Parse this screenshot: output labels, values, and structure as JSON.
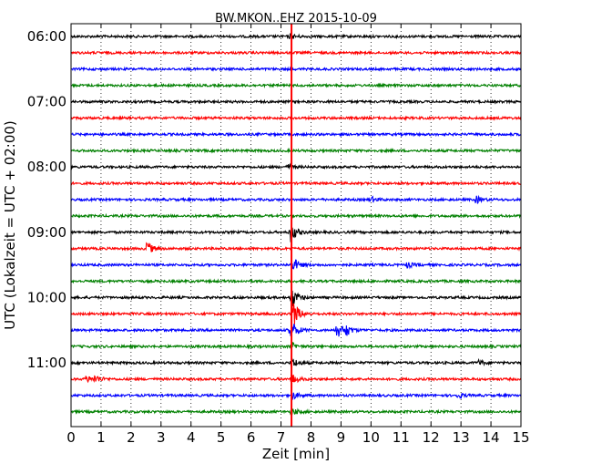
{
  "chart_data": {
    "type": "line",
    "title": "BW.MKON..EHZ 2015-10-09",
    "xlabel": "Zeit  [min]",
    "ylabel": "UTC (Lokalzeit = UTC + 02:00)",
    "xlim": [
      0,
      15
    ],
    "x_ticks": [
      "0",
      "1",
      "2",
      "3",
      "4",
      "5",
      "6",
      "7",
      "8",
      "9",
      "10",
      "11",
      "12",
      "13",
      "14",
      "15"
    ],
    "y_ticks": [
      "06:00",
      "07:00",
      "08:00",
      "09:00",
      "10:00",
      "11:00"
    ],
    "grid": "vertical dotted at each minute",
    "trace_colors": [
      "#000000",
      "#ff0000",
      "#0000ff",
      "#008000"
    ],
    "marker_line": {
      "x": 7.35,
      "color": "#ff0000"
    },
    "traces": [
      {
        "start": "06:00",
        "events": [
          {
            "x": 7.3,
            "amp": 3
          }
        ]
      },
      {
        "start": "06:15",
        "events": []
      },
      {
        "start": "06:30",
        "events": []
      },
      {
        "start": "06:45",
        "events": []
      },
      {
        "start": "07:00",
        "events": []
      },
      {
        "start": "07:15",
        "events": []
      },
      {
        "start": "07:30",
        "events": []
      },
      {
        "start": "07:45",
        "events": []
      },
      {
        "start": "08:00",
        "events": [
          {
            "x": 7.2,
            "amp": 3
          }
        ]
      },
      {
        "start": "08:15",
        "events": []
      },
      {
        "start": "08:30",
        "events": [
          {
            "x": 10.0,
            "amp": 3
          },
          {
            "x": 13.5,
            "amp": 4
          }
        ]
      },
      {
        "start": "08:45",
        "events": []
      },
      {
        "start": "09:00",
        "events": [
          {
            "x": 7.3,
            "amp": 12
          }
        ]
      },
      {
        "start": "09:15",
        "events": [
          {
            "x": 2.5,
            "amp": 9
          }
        ]
      },
      {
        "start": "09:30",
        "events": [
          {
            "x": 7.4,
            "amp": 8
          },
          {
            "x": 11.2,
            "amp": 3
          }
        ]
      },
      {
        "start": "09:45",
        "events": [
          {
            "x": 15.0,
            "amp": 3
          }
        ]
      },
      {
        "start": "10:00",
        "events": [
          {
            "x": 7.35,
            "amp": 12
          }
        ]
      },
      {
        "start": "10:15",
        "events": [
          {
            "x": 7.4,
            "amp": 16
          }
        ]
      },
      {
        "start": "10:30",
        "events": [
          {
            "x": 7.3,
            "amp": 14
          },
          {
            "x": 8.85,
            "amp": 10
          },
          {
            "x": 9.15,
            "amp": 6
          }
        ]
      },
      {
        "start": "10:45",
        "events": [
          {
            "x": 7.35,
            "amp": 4
          }
        ]
      },
      {
        "start": "11:00",
        "events": [
          {
            "x": 7.35,
            "amp": 6
          },
          {
            "x": 13.6,
            "amp": 3
          }
        ]
      },
      {
        "start": "11:15",
        "events": [
          {
            "x": 0.5,
            "amp": 4
          },
          {
            "x": 0.8,
            "amp": 4
          },
          {
            "x": 7.35,
            "amp": 6
          }
        ]
      },
      {
        "start": "11:30",
        "events": [
          {
            "x": 7.35,
            "amp": 5
          },
          {
            "x": 12.9,
            "amp": 3
          }
        ]
      },
      {
        "start": "11:45",
        "events": [
          {
            "x": 7.35,
            "amp": 4
          }
        ]
      }
    ]
  }
}
